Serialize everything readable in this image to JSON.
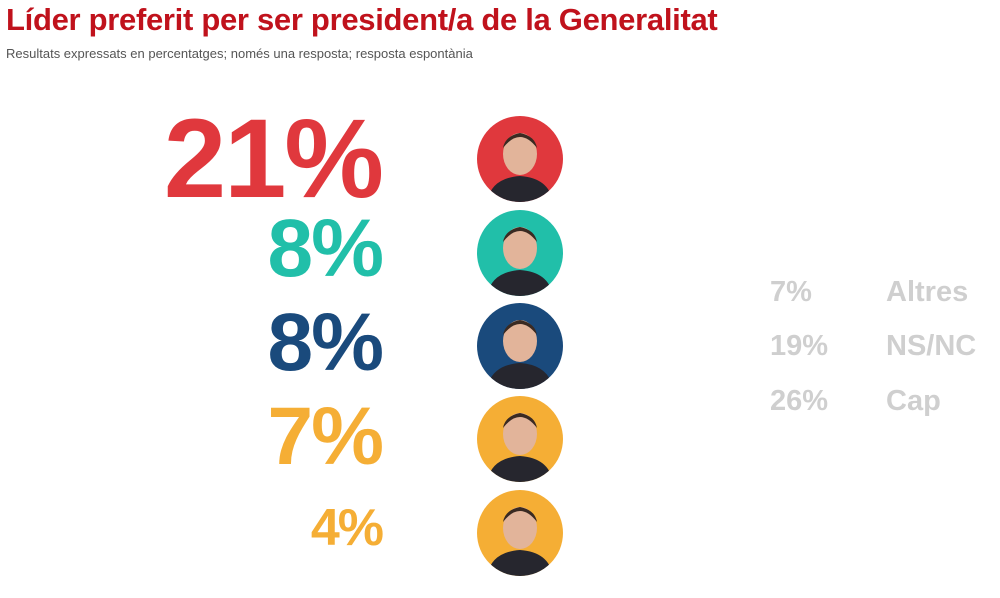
{
  "title": "Líder preferit per ser president/a de la Generalitat",
  "subtitle": "Resultats expressats en percentatges; només una resposta; resposta espontània",
  "chart_data": {
    "type": "table",
    "unit": "%",
    "leaders": [
      {
        "value": 21,
        "label": "21%",
        "color": "#e0383d"
      },
      {
        "value": 8,
        "label": "8%",
        "color": "#21bfa9"
      },
      {
        "value": 8,
        "label": "8%",
        "color": "#1a4a7c"
      },
      {
        "value": 7,
        "label": "7%",
        "color": "#f5ae35"
      },
      {
        "value": 4,
        "label": "4%",
        "color": "#f5ae35"
      }
    ],
    "others": [
      {
        "value": 7,
        "label": "7%",
        "category": "Altres"
      },
      {
        "value": 19,
        "label": "19%",
        "category": "NS/NC"
      },
      {
        "value": 26,
        "label": "26%",
        "category": "Cap"
      }
    ]
  }
}
